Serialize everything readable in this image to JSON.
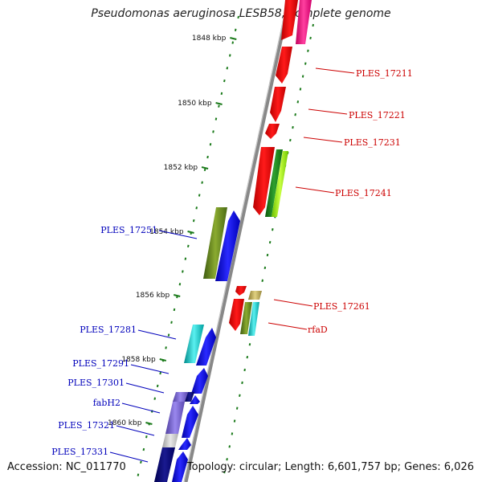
{
  "title": "Pseudomonas aeruginosa LESB58, complete genome",
  "accession": "Accession: NC_011770",
  "topology": "Topology: circular; Length: 6,601,757 bp; Genes: 6,026",
  "colors": {
    "forward_label": "#cc0000",
    "reverse_label": "#0000bb",
    "backbone": "#888888",
    "tick": "#1a7a1a"
  },
  "kbp_marks": [
    {
      "label": "1848 kbp"
    },
    {
      "label": "1850 kbp"
    },
    {
      "label": "1852 kbp"
    },
    {
      "label": "1854 kbp"
    },
    {
      "label": "1856 kbp"
    },
    {
      "label": "1858 kbp"
    },
    {
      "label": "1860 kbp"
    }
  ],
  "genes_forward_labels": [
    "PLES_17211",
    "PLES_17221",
    "PLES_17231",
    "PLES_17241",
    "PLES_17261",
    "rfaD"
  ],
  "genes_reverse_labels": [
    "PLES_17251",
    "PLES_17281",
    "PLES_17291",
    "PLES_17301",
    "fabH2",
    "PLES_17321",
    "PLES_17331"
  ]
}
